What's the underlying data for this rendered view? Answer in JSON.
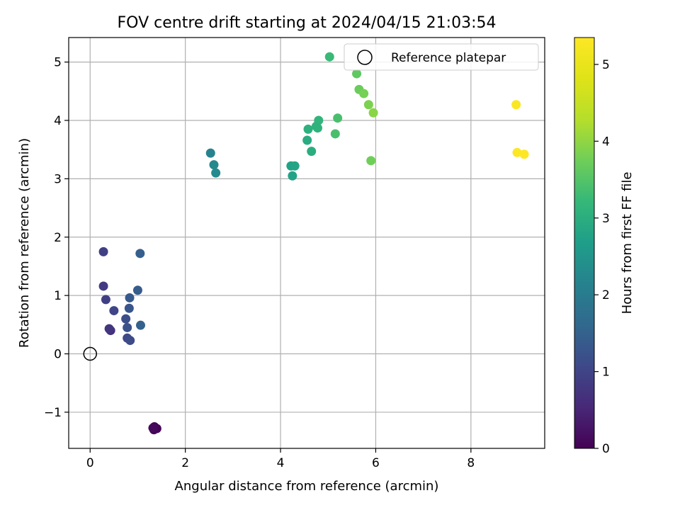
{
  "chart_data": {
    "type": "scatter",
    "title": "FOV centre drift starting at 2024/04/15 21:03:54",
    "xlabel": "Angular distance from reference (arcmin)",
    "ylabel": "Rotation from reference (arcmin)",
    "xlim": [
      -0.45,
      9.55
    ],
    "ylim": [
      -1.62,
      5.42
    ],
    "xticks": [
      0,
      2,
      4,
      6,
      8
    ],
    "yticks": [
      -1,
      0,
      1,
      2,
      3,
      4,
      5
    ],
    "xtick_labels": [
      "0",
      "2",
      "4",
      "6",
      "8"
    ],
    "ytick_labels": [
      "−1",
      "0",
      "1",
      "2",
      "3",
      "4",
      "5"
    ],
    "grid": true,
    "legend": {
      "placement": "top-right",
      "entries": [
        "Reference platepar"
      ]
    },
    "colorbar": {
      "label": "Hours from first FF file",
      "range": [
        0,
        5.35
      ],
      "ticks": [
        0,
        1,
        2,
        3,
        4,
        5
      ],
      "tick_labels": [
        "0",
        "1",
        "2",
        "3",
        "4",
        "5"
      ],
      "colormap": "viridis"
    },
    "reference": {
      "name": "Reference platepar",
      "x": 0,
      "y": 0
    },
    "points": [
      {
        "x": 1.34,
        "y": -1.3,
        "c": 0.0
      },
      {
        "x": 1.4,
        "y": -1.28,
        "c": 0.03
      },
      {
        "x": 1.35,
        "y": -1.25,
        "c": 0.06
      },
      {
        "x": 1.32,
        "y": -1.27,
        "c": 0.09
      },
      {
        "x": 0.43,
        "y": 0.4,
        "c": 0.7
      },
      {
        "x": 0.4,
        "y": 0.43,
        "c": 0.75
      },
      {
        "x": 0.28,
        "y": 1.16,
        "c": 0.85
      },
      {
        "x": 0.28,
        "y": 1.75,
        "c": 0.9
      },
      {
        "x": 0.33,
        "y": 0.93,
        "c": 0.9
      },
      {
        "x": 0.5,
        "y": 0.74,
        "c": 1.0
      },
      {
        "x": 0.78,
        "y": 0.27,
        "c": 1.05
      },
      {
        "x": 0.84,
        "y": 0.23,
        "c": 1.1
      },
      {
        "x": 0.75,
        "y": 0.6,
        "c": 1.15
      },
      {
        "x": 0.78,
        "y": 0.45,
        "c": 1.2
      },
      {
        "x": 0.82,
        "y": 0.78,
        "c": 1.3
      },
      {
        "x": 0.83,
        "y": 0.96,
        "c": 1.35
      },
      {
        "x": 1.0,
        "y": 1.09,
        "c": 1.4
      },
      {
        "x": 1.05,
        "y": 1.72,
        "c": 1.45
      },
      {
        "x": 1.06,
        "y": 0.49,
        "c": 1.5
      },
      {
        "x": 2.53,
        "y": 3.44,
        "c": 2.15
      },
      {
        "x": 2.6,
        "y": 3.24,
        "c": 2.25
      },
      {
        "x": 2.64,
        "y": 3.1,
        "c": 2.3
      },
      {
        "x": 4.22,
        "y": 3.22,
        "c": 2.75
      },
      {
        "x": 4.3,
        "y": 3.22,
        "c": 2.8
      },
      {
        "x": 4.25,
        "y": 3.05,
        "c": 2.78
      },
      {
        "x": 4.56,
        "y": 3.66,
        "c": 2.95
      },
      {
        "x": 4.65,
        "y": 3.47,
        "c": 3.0
      },
      {
        "x": 4.58,
        "y": 3.85,
        "c": 3.05
      },
      {
        "x": 4.78,
        "y": 3.87,
        "c": 3.1
      },
      {
        "x": 4.8,
        "y": 4.0,
        "c": 3.15
      },
      {
        "x": 4.75,
        "y": 3.9,
        "c": 3.1
      },
      {
        "x": 5.03,
        "y": 5.09,
        "c": 3.25
      },
      {
        "x": 5.2,
        "y": 4.04,
        "c": 3.4
      },
      {
        "x": 5.15,
        "y": 3.77,
        "c": 3.4
      },
      {
        "x": 5.6,
        "y": 4.8,
        "c": 3.6
      },
      {
        "x": 5.65,
        "y": 4.53,
        "c": 3.7
      },
      {
        "x": 5.75,
        "y": 4.46,
        "c": 3.8
      },
      {
        "x": 5.85,
        "y": 4.27,
        "c": 3.85
      },
      {
        "x": 5.9,
        "y": 3.31,
        "c": 3.75
      },
      {
        "x": 5.95,
        "y": 4.13,
        "c": 3.95
      },
      {
        "x": 8.95,
        "y": 4.27,
        "c": 5.3
      },
      {
        "x": 8.97,
        "y": 3.45,
        "c": 5.33
      },
      {
        "x": 9.12,
        "y": 3.42,
        "c": 5.35
      }
    ]
  }
}
